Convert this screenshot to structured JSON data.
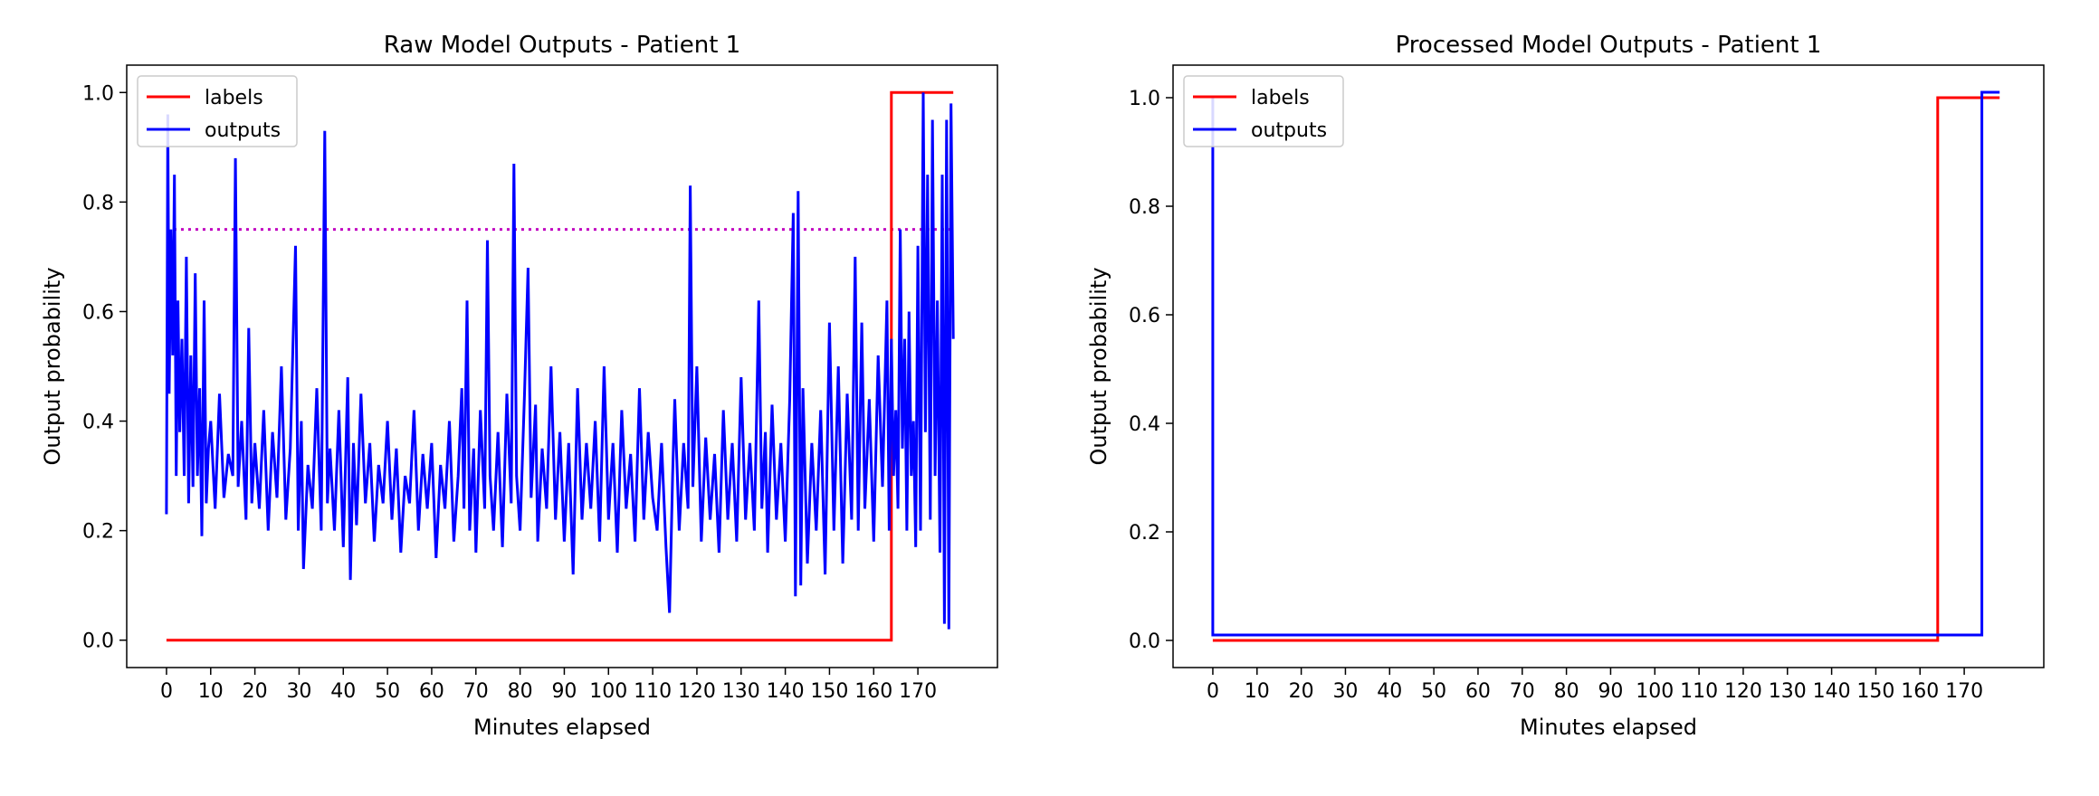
{
  "chart_data": [
    {
      "type": "line",
      "title": "Raw Model Outputs - Patient 1",
      "xlabel": "Minutes elapsed",
      "ylabel": "Output probability",
      "xlim": [
        -9,
        188
      ],
      "ylim": [
        -0.05,
        1.05
      ],
      "xticks": [
        0,
        10,
        20,
        30,
        40,
        50,
        60,
        70,
        80,
        90,
        100,
        110,
        120,
        130,
        140,
        150,
        160,
        170
      ],
      "yticks": [
        0.0,
        0.2,
        0.4,
        0.6,
        0.8,
        1.0
      ],
      "ytick_labels": [
        "0.0",
        "0.2",
        "0.4",
        "0.6",
        "0.8",
        "1.0"
      ],
      "grid": false,
      "legend": "top-left",
      "threshold": {
        "y": 0.75,
        "x_range": [
          0,
          178
        ],
        "color": "#c000c0",
        "style": "dotted"
      },
      "series": [
        {
          "name": "labels",
          "color": "#ff0000",
          "points": [
            [
              0,
              0
            ],
            [
              164,
              0
            ],
            [
              164,
              1
            ],
            [
              178,
              1
            ]
          ]
        },
        {
          "name": "outputs",
          "color": "#0000ff",
          "points": [
            [
              0,
              0.23
            ],
            [
              0.3,
              0.96
            ],
            [
              0.6,
              0.45
            ],
            [
              1,
              0.75
            ],
            [
              1.4,
              0.52
            ],
            [
              1.8,
              0.85
            ],
            [
              2.2,
              0.3
            ],
            [
              2.6,
              0.62
            ],
            [
              3,
              0.38
            ],
            [
              3.5,
              0.55
            ],
            [
              4,
              0.3
            ],
            [
              4.5,
              0.7
            ],
            [
              5,
              0.25
            ],
            [
              5.5,
              0.52
            ],
            [
              6,
              0.28
            ],
            [
              6.5,
              0.67
            ],
            [
              7,
              0.3
            ],
            [
              7.5,
              0.46
            ],
            [
              8,
              0.19
            ],
            [
              8.5,
              0.62
            ],
            [
              9,
              0.25
            ],
            [
              9.5,
              0.35
            ],
            [
              10,
              0.4
            ],
            [
              11,
              0.24
            ],
            [
              12,
              0.45
            ],
            [
              13,
              0.26
            ],
            [
              14,
              0.34
            ],
            [
              15,
              0.3
            ],
            [
              15.6,
              0.88
            ],
            [
              16.2,
              0.28
            ],
            [
              17,
              0.4
            ],
            [
              18,
              0.22
            ],
            [
              18.6,
              0.57
            ],
            [
              19.3,
              0.25
            ],
            [
              20,
              0.36
            ],
            [
              21,
              0.24
            ],
            [
              22,
              0.42
            ],
            [
              23,
              0.2
            ],
            [
              24,
              0.38
            ],
            [
              25,
              0.26
            ],
            [
              26,
              0.5
            ],
            [
              27,
              0.22
            ],
            [
              28,
              0.35
            ],
            [
              29.2,
              0.72
            ],
            [
              29.8,
              0.2
            ],
            [
              30.5,
              0.4
            ],
            [
              31,
              0.13
            ],
            [
              32,
              0.32
            ],
            [
              33,
              0.24
            ],
            [
              34,
              0.46
            ],
            [
              35,
              0.2
            ],
            [
              35.8,
              0.93
            ],
            [
              36.4,
              0.25
            ],
            [
              37,
              0.35
            ],
            [
              38,
              0.2
            ],
            [
              39,
              0.42
            ],
            [
              40,
              0.17
            ],
            [
              41,
              0.48
            ],
            [
              41.6,
              0.11
            ],
            [
              42.3,
              0.36
            ],
            [
              43,
              0.21
            ],
            [
              44,
              0.45
            ],
            [
              45,
              0.25
            ],
            [
              46,
              0.36
            ],
            [
              47,
              0.18
            ],
            [
              48,
              0.32
            ],
            [
              49,
              0.25
            ],
            [
              50,
              0.4
            ],
            [
              51,
              0.22
            ],
            [
              52,
              0.35
            ],
            [
              53,
              0.16
            ],
            [
              54,
              0.3
            ],
            [
              55,
              0.25
            ],
            [
              56,
              0.42
            ],
            [
              57,
              0.2
            ],
            [
              58,
              0.34
            ],
            [
              59,
              0.24
            ],
            [
              60,
              0.36
            ],
            [
              61,
              0.15
            ],
            [
              62,
              0.32
            ],
            [
              63,
              0.24
            ],
            [
              64,
              0.4
            ],
            [
              65,
              0.18
            ],
            [
              66,
              0.3
            ],
            [
              66.8,
              0.46
            ],
            [
              67.3,
              0.24
            ],
            [
              68,
              0.62
            ],
            [
              68.6,
              0.2
            ],
            [
              69.5,
              0.35
            ],
            [
              70,
              0.16
            ],
            [
              71,
              0.42
            ],
            [
              72,
              0.24
            ],
            [
              72.6,
              0.73
            ],
            [
              73.2,
              0.3
            ],
            [
              74,
              0.2
            ],
            [
              75,
              0.38
            ],
            [
              76,
              0.17
            ],
            [
              77,
              0.45
            ],
            [
              78,
              0.25
            ],
            [
              78.6,
              0.87
            ],
            [
              79.2,
              0.3
            ],
            [
              80,
              0.2
            ],
            [
              81,
              0.45
            ],
            [
              81.8,
              0.68
            ],
            [
              82.5,
              0.26
            ],
            [
              83.5,
              0.43
            ],
            [
              84,
              0.18
            ],
            [
              85,
              0.35
            ],
            [
              86,
              0.24
            ],
            [
              87,
              0.5
            ],
            [
              88,
              0.22
            ],
            [
              89,
              0.38
            ],
            [
              90,
              0.18
            ],
            [
              91,
              0.36
            ],
            [
              92,
              0.12
            ],
            [
              93,
              0.46
            ],
            [
              94,
              0.22
            ],
            [
              95,
              0.36
            ],
            [
              96,
              0.24
            ],
            [
              97,
              0.4
            ],
            [
              98,
              0.18
            ],
            [
              99,
              0.5
            ],
            [
              100,
              0.22
            ],
            [
              101,
              0.36
            ],
            [
              102,
              0.16
            ],
            [
              103,
              0.42
            ],
            [
              104,
              0.24
            ],
            [
              105,
              0.34
            ],
            [
              106,
              0.18
            ],
            [
              107,
              0.46
            ],
            [
              108,
              0.22
            ],
            [
              109,
              0.38
            ],
            [
              110,
              0.26
            ],
            [
              111,
              0.2
            ],
            [
              112,
              0.36
            ],
            [
              113,
              0.17
            ],
            [
              113.8,
              0.05
            ],
            [
              114.5,
              0.3
            ],
            [
              115,
              0.44
            ],
            [
              116,
              0.2
            ],
            [
              117,
              0.36
            ],
            [
              118,
              0.24
            ],
            [
              118.5,
              0.83
            ],
            [
              119.1,
              0.28
            ],
            [
              120,
              0.5
            ],
            [
              121,
              0.18
            ],
            [
              122,
              0.37
            ],
            [
              123,
              0.22
            ],
            [
              124,
              0.34
            ],
            [
              125,
              0.16
            ],
            [
              126,
              0.42
            ],
            [
              127,
              0.22
            ],
            [
              128,
              0.36
            ],
            [
              129,
              0.18
            ],
            [
              130,
              0.48
            ],
            [
              131,
              0.22
            ],
            [
              132,
              0.36
            ],
            [
              133,
              0.2
            ],
            [
              134,
              0.62
            ],
            [
              134.7,
              0.24
            ],
            [
              135.5,
              0.38
            ],
            [
              136,
              0.16
            ],
            [
              137,
              0.43
            ],
            [
              138,
              0.22
            ],
            [
              139,
              0.36
            ],
            [
              140,
              0.18
            ],
            [
              141,
              0.44
            ],
            [
              141.8,
              0.78
            ],
            [
              142.3,
              0.08
            ],
            [
              142.9,
              0.82
            ],
            [
              143.5,
              0.1
            ],
            [
              144,
              0.46
            ],
            [
              145,
              0.14
            ],
            [
              146,
              0.36
            ],
            [
              147,
              0.2
            ],
            [
              148,
              0.42
            ],
            [
              149,
              0.12
            ],
            [
              150,
              0.58
            ],
            [
              151,
              0.2
            ],
            [
              152,
              0.5
            ],
            [
              153,
              0.14
            ],
            [
              154,
              0.45
            ],
            [
              155,
              0.22
            ],
            [
              155.8,
              0.7
            ],
            [
              156.5,
              0.2
            ],
            [
              157.3,
              0.58
            ],
            [
              158,
              0.24
            ],
            [
              159,
              0.44
            ],
            [
              160,
              0.18
            ],
            [
              161,
              0.52
            ],
            [
              162,
              0.28
            ],
            [
              163,
              0.62
            ],
            [
              163.5,
              0.2
            ],
            [
              164,
              0.55
            ],
            [
              164.5,
              0.3
            ],
            [
              165,
              0.42
            ],
            [
              165.5,
              0.24
            ],
            [
              166,
              0.75
            ],
            [
              166.5,
              0.35
            ],
            [
              167,
              0.55
            ],
            [
              167.5,
              0.2
            ],
            [
              168,
              0.6
            ],
            [
              168.5,
              0.3
            ],
            [
              169,
              0.4
            ],
            [
              169.5,
              0.17
            ],
            [
              170,
              0.72
            ],
            [
              170.6,
              0.2
            ],
            [
              171.2,
              1.0
            ],
            [
              171.7,
              0.38
            ],
            [
              172.2,
              0.85
            ],
            [
              172.8,
              0.22
            ],
            [
              173.3,
              0.95
            ],
            [
              173.9,
              0.3
            ],
            [
              174.4,
              0.62
            ],
            [
              175,
              0.16
            ],
            [
              175.5,
              0.85
            ],
            [
              176,
              0.03
            ],
            [
              176.5,
              0.95
            ],
            [
              177,
              0.02
            ],
            [
              177.5,
              0.98
            ],
            [
              178,
              0.55
            ]
          ]
        }
      ]
    },
    {
      "type": "line",
      "title": "Processed Model Outputs - Patient 1",
      "xlabel": "Minutes elapsed",
      "ylabel": "Output probability",
      "xlim": [
        -9,
        188
      ],
      "ylim": [
        -0.05,
        1.06
      ],
      "xticks": [
        0,
        10,
        20,
        30,
        40,
        50,
        60,
        70,
        80,
        90,
        100,
        110,
        120,
        130,
        140,
        150,
        160,
        170
      ],
      "yticks": [
        0.0,
        0.2,
        0.4,
        0.6,
        0.8,
        1.0
      ],
      "ytick_labels": [
        "0.0",
        "0.2",
        "0.4",
        "0.6",
        "0.8",
        "1.0"
      ],
      "grid": false,
      "legend": "top-left",
      "series": [
        {
          "name": "labels",
          "color": "#ff0000",
          "points": [
            [
              0,
              0
            ],
            [
              164,
              0
            ],
            [
              164,
              1
            ],
            [
              178,
              1
            ]
          ]
        },
        {
          "name": "outputs",
          "color": "#0000ff",
          "points": [
            [
              0,
              1.0
            ],
            [
              0,
              0.01
            ],
            [
              174,
              0.01
            ],
            [
              174,
              1.01
            ],
            [
              178,
              1.01
            ]
          ]
        }
      ]
    }
  ]
}
